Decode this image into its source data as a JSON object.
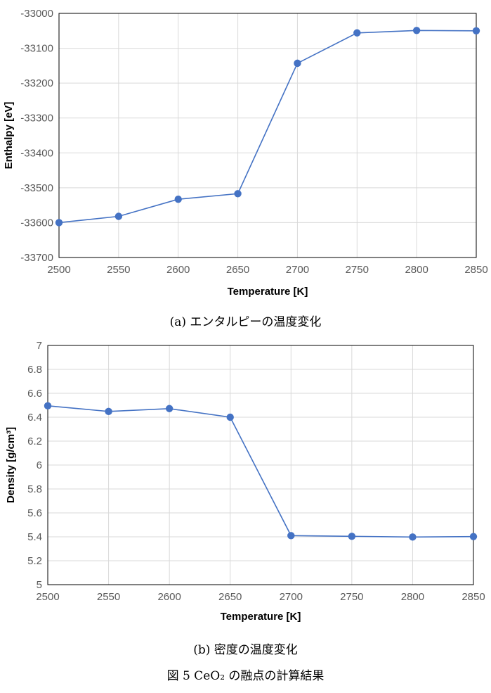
{
  "chart_data": [
    {
      "type": "line",
      "xlabel": "Temperature [K]",
      "ylabel": "Enthalpy [eV]",
      "x": [
        2500,
        2550,
        2600,
        2650,
        2700,
        2750,
        2800,
        2850
      ],
      "values": [
        -33600,
        -33582,
        -33533,
        -33517,
        -33143,
        -33056,
        -33049,
        -33050
      ],
      "xlim": [
        2500,
        2850
      ],
      "ylim": [
        -33700,
        -33000
      ],
      "xticks": [
        "2500",
        "2550",
        "2600",
        "2650",
        "2700",
        "2750",
        "2800",
        "2850"
      ],
      "yticks": [
        "-33000",
        "-33100",
        "-33200",
        "-33300",
        "-33400",
        "-33500",
        "-33600",
        "-33700"
      ],
      "grid": true,
      "color": "#4472c4",
      "caption": "(a) エンタルピーの温度変化"
    },
    {
      "type": "line",
      "xlabel": "Temperature [K]",
      "ylabel": "Density [g/cm³]",
      "x": [
        2500,
        2550,
        2600,
        2650,
        2700,
        2750,
        2800,
        2850
      ],
      "values": [
        6.495,
        6.448,
        6.472,
        6.4,
        5.41,
        5.404,
        5.398,
        5.402
      ],
      "xlim": [
        2500,
        2850
      ],
      "ylim": [
        5,
        7
      ],
      "xticks": [
        "2500",
        "2550",
        "2600",
        "2650",
        "2700",
        "2750",
        "2800",
        "2850"
      ],
      "yticks": [
        "7",
        "6.8",
        "6.6",
        "6.4",
        "6.2",
        "6",
        "5.8",
        "5.6",
        "5.4",
        "5.2",
        "5"
      ],
      "grid": true,
      "color": "#4472c4",
      "caption": "(b) 密度の温度変化"
    }
  ],
  "figure_caption": "図 5 CeO₂ の融点の計算結果"
}
